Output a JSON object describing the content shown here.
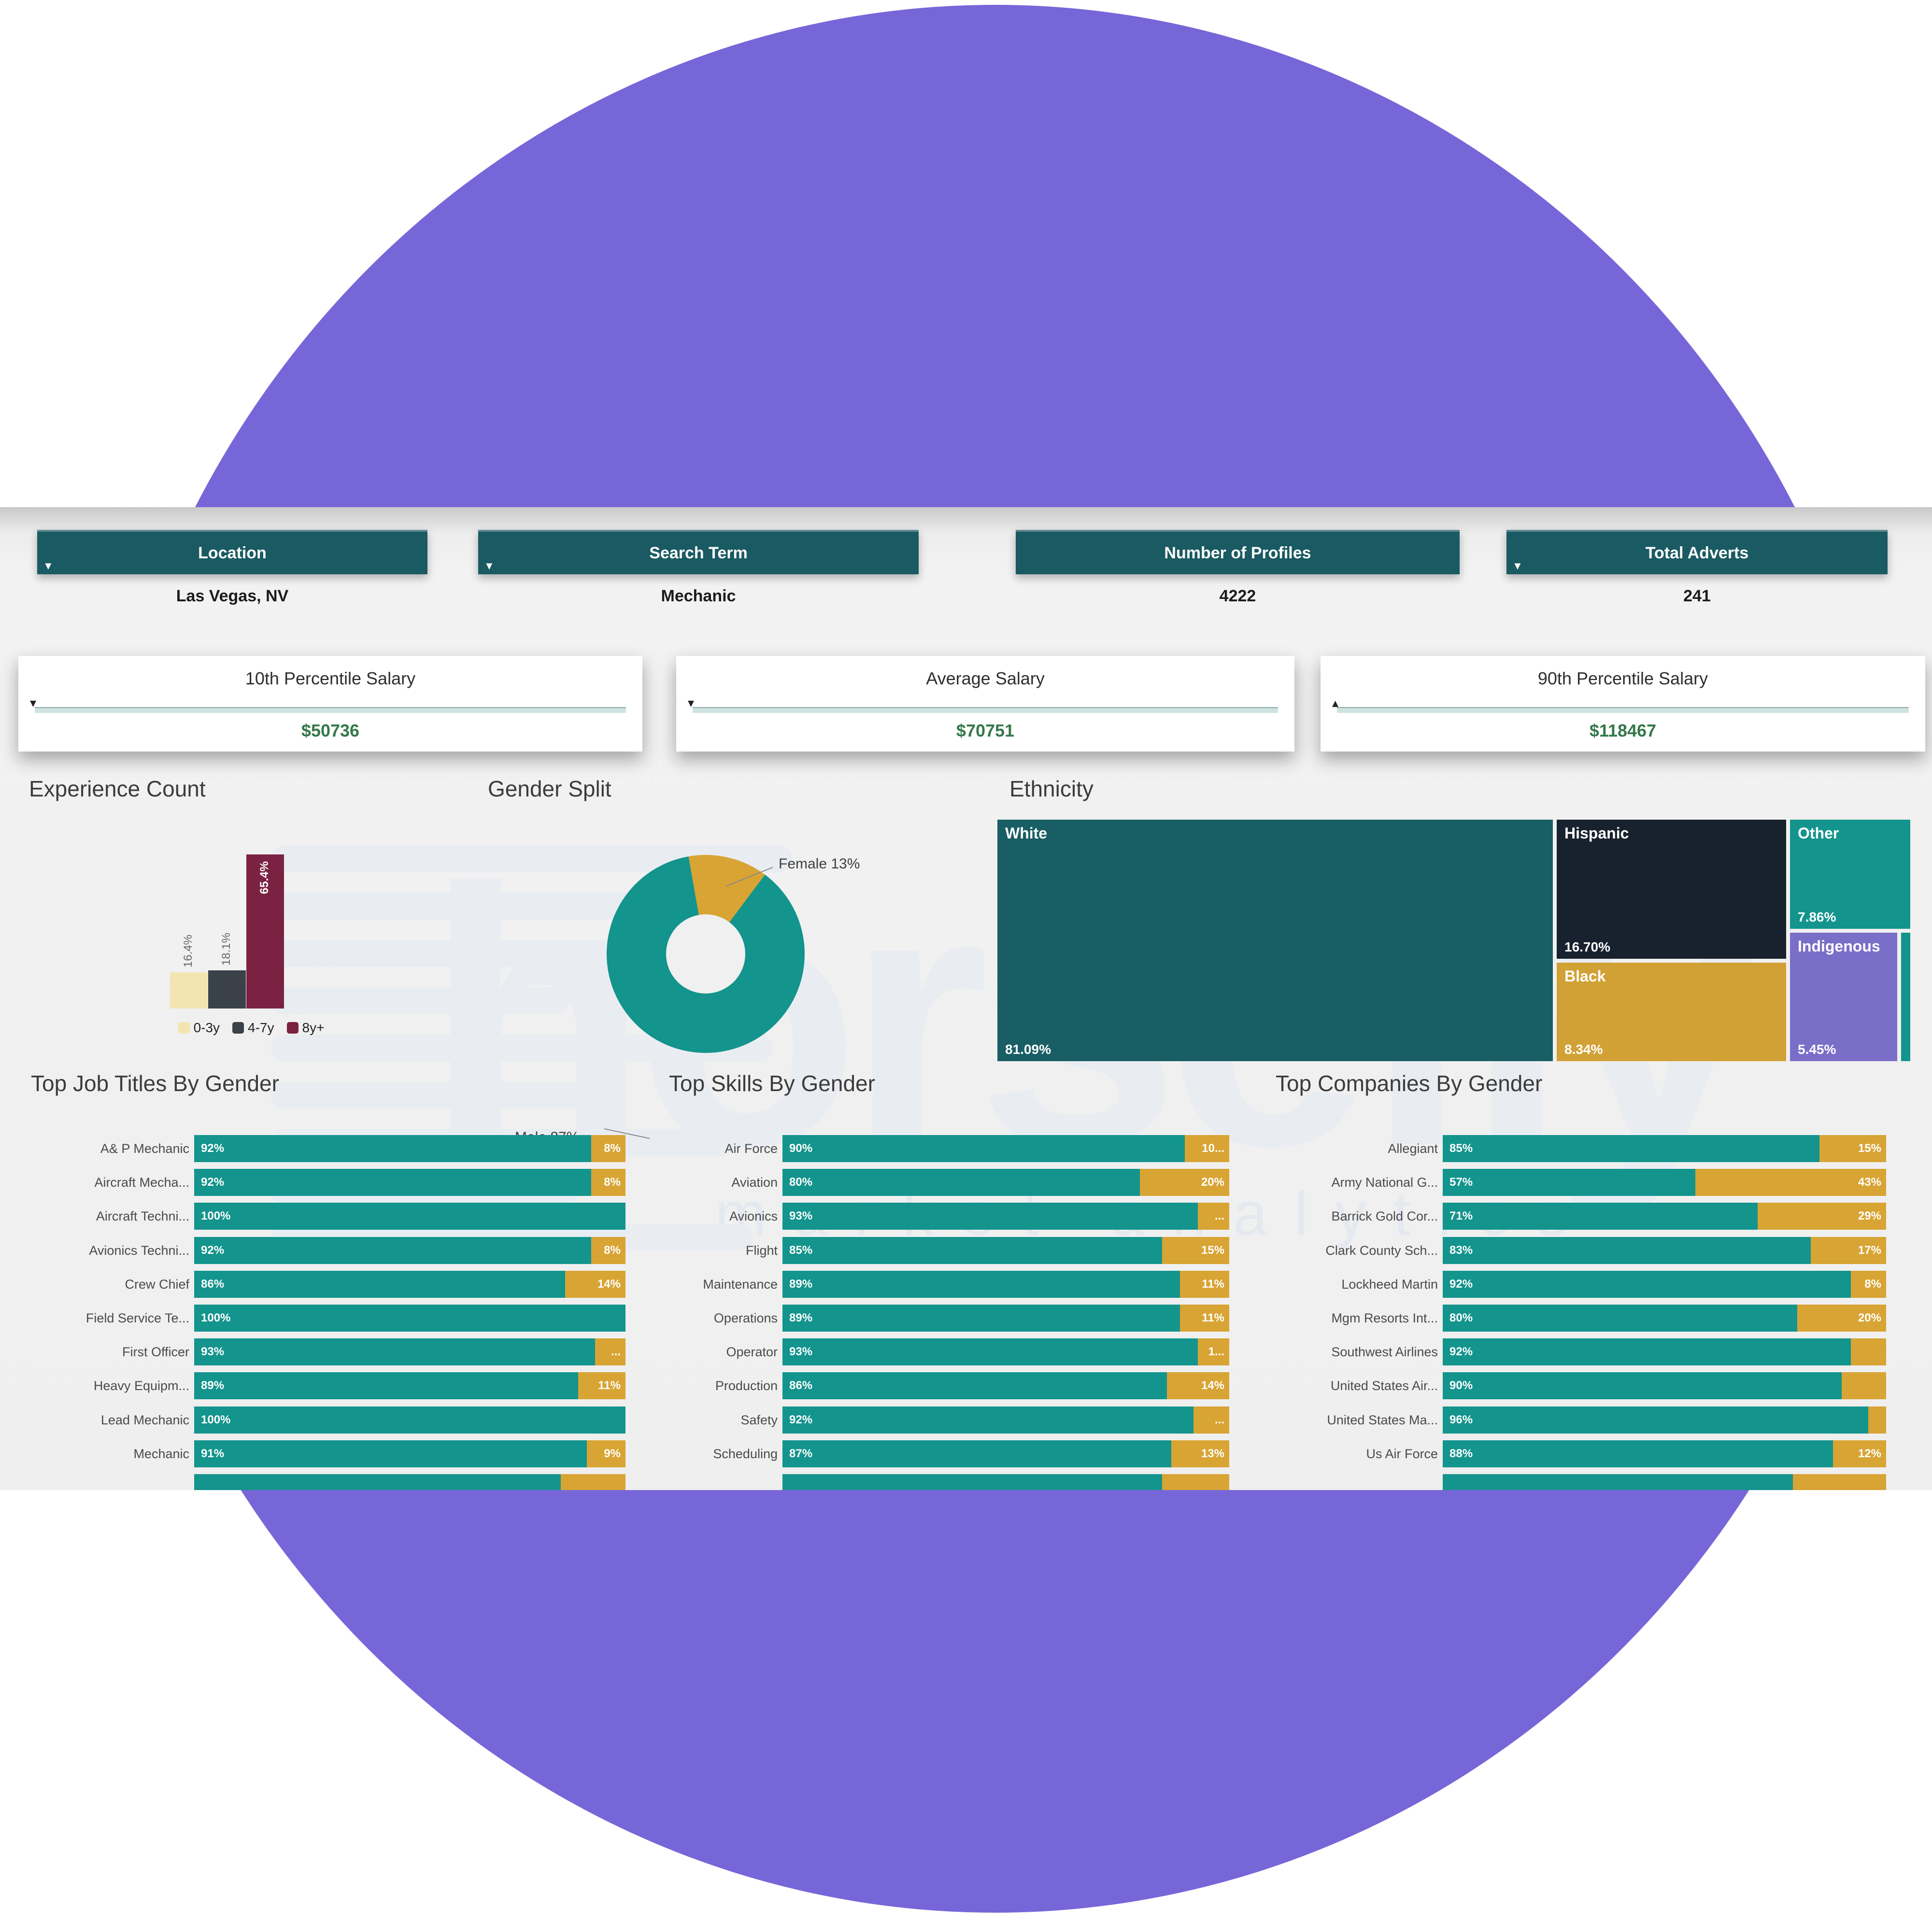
{
  "filters": {
    "location": {
      "label": "Location",
      "value": "Las Vegas, NV"
    },
    "search_term": {
      "label": "Search Term",
      "value": "Mechanic"
    },
    "profiles": {
      "label": "Number of Profiles",
      "value": "4222"
    },
    "adverts": {
      "label": "Total Adverts",
      "value": "241"
    }
  },
  "salary_cards": [
    {
      "title": "10th Percentile Salary",
      "value": "$50736",
      "caret": "▾"
    },
    {
      "title": "Average Salary",
      "value": "$70751",
      "caret": "▾"
    },
    {
      "title": "90th Percentile Salary",
      "value": "$118467",
      "caret": "▴"
    }
  ],
  "watermark": {
    "brand": "horsefly",
    "tagline": "market analytics"
  },
  "colors": {
    "purple": "#7766D8",
    "header_teal": "#1A5A62",
    "teal": "#13948D",
    "gold": "#D8A434",
    "maroon": "#7B2242",
    "cream": "#F3E5B1",
    "slate": "#3A4149",
    "salary_green": "#35784B"
  },
  "chart_data": [
    {
      "type": "bar",
      "title": "Experience Count",
      "categories": [
        "0-3y",
        "4-7y",
        "8y+"
      ],
      "values": [
        16.4,
        18.1,
        65.4
      ],
      "value_labels": [
        "16.4%",
        "18.1%",
        "65.4%"
      ],
      "colors": [
        "#F3E5B1",
        "#3A4149",
        "#7B2242"
      ],
      "ylabel": "",
      "xlabel": "",
      "legend_position": "bottom"
    },
    {
      "type": "pie",
      "title": "Gender Split",
      "labels": [
        "Male",
        "Female"
      ],
      "values": [
        87,
        13
      ],
      "colors": [
        "#13948D",
        "#D8A434"
      ],
      "donut": true,
      "annotations": [
        "Male 87%",
        "Female 13%"
      ]
    },
    {
      "type": "treemap",
      "title": "Ethnicity",
      "tiles": [
        {
          "label": "White",
          "value": 81.09,
          "pct": "81.09%",
          "color": "#185E64"
        },
        {
          "label": "Hispanic",
          "value": 16.7,
          "pct": "16.70%",
          "color": "#17222E"
        },
        {
          "label": "Black",
          "value": 8.34,
          "pct": "8.34%",
          "color": "#D2A136"
        },
        {
          "label": "Other",
          "value": 7.86,
          "pct": "7.86%",
          "color": "#13948D"
        },
        {
          "label": "Indigenous",
          "value": 5.45,
          "pct": "5.45%",
          "color": "#7A6EC8"
        },
        {
          "label": "",
          "value": null,
          "pct": "",
          "color": "#13948D"
        }
      ]
    },
    {
      "type": "bar",
      "stacked": true,
      "orientation": "horizontal",
      "title": "Top Job Titles By Gender",
      "series_names": [
        "Male",
        "Female"
      ],
      "colors": [
        "#13948D",
        "#D8A434"
      ],
      "rows": [
        {
          "label": "A& P Mechanic",
          "male": 92,
          "female": 8,
          "male_label": "92%",
          "female_label": "8%"
        },
        {
          "label": "Aircraft Mecha...",
          "male": 92,
          "female": 8,
          "male_label": "92%",
          "female_label": "8%"
        },
        {
          "label": "Aircraft Techni...",
          "male": 100,
          "female": 0,
          "male_label": "100%",
          "female_label": ""
        },
        {
          "label": "Avionics Techni...",
          "male": 92,
          "female": 8,
          "male_label": "92%",
          "female_label": "8%"
        },
        {
          "label": "Crew Chief",
          "male": 86,
          "female": 14,
          "male_label": "86%",
          "female_label": "14%"
        },
        {
          "label": "Field Service Te...",
          "male": 100,
          "female": 0,
          "male_label": "100%",
          "female_label": ""
        },
        {
          "label": "First Officer",
          "male": 93,
          "female": 7,
          "male_label": "93%",
          "female_label": "..."
        },
        {
          "label": "Heavy Equipm...",
          "male": 89,
          "female": 11,
          "male_label": "89%",
          "female_label": "11%"
        },
        {
          "label": "Lead Mechanic",
          "male": 100,
          "female": 0,
          "male_label": "100%",
          "female_label": ""
        },
        {
          "label": "Mechanic",
          "male": 91,
          "female": 9,
          "male_label": "91%",
          "female_label": "9%"
        },
        {
          "label": "",
          "male": 85,
          "female": 15,
          "male_label": "",
          "female_label": ""
        }
      ]
    },
    {
      "type": "bar",
      "stacked": true,
      "orientation": "horizontal",
      "title": "Top Skills By Gender",
      "series_names": [
        "Male",
        "Female"
      ],
      "colors": [
        "#13948D",
        "#D8A434"
      ],
      "rows": [
        {
          "label": "Air Force",
          "male": 90,
          "female": 10,
          "male_label": "90%",
          "female_label": "10..."
        },
        {
          "label": "Aviation",
          "male": 80,
          "female": 20,
          "male_label": "80%",
          "female_label": "20%"
        },
        {
          "label": "Avionics",
          "male": 93,
          "female": 7,
          "male_label": "93%",
          "female_label": "..."
        },
        {
          "label": "Flight",
          "male": 85,
          "female": 15,
          "male_label": "85%",
          "female_label": "15%"
        },
        {
          "label": "Maintenance",
          "male": 89,
          "female": 11,
          "male_label": "89%",
          "female_label": "11%"
        },
        {
          "label": "Operations",
          "male": 89,
          "female": 11,
          "male_label": "89%",
          "female_label": "11%"
        },
        {
          "label": "Operator",
          "male": 93,
          "female": 7,
          "male_label": "93%",
          "female_label": "1..."
        },
        {
          "label": "Production",
          "male": 86,
          "female": 14,
          "male_label": "86%",
          "female_label": "14%"
        },
        {
          "label": "Safety",
          "male": 92,
          "female": 8,
          "male_label": "92%",
          "female_label": "..."
        },
        {
          "label": "Scheduling",
          "male": 87,
          "female": 13,
          "male_label": "87%",
          "female_label": "13%"
        },
        {
          "label": "",
          "male": 85,
          "female": 15,
          "male_label": "",
          "female_label": ""
        }
      ]
    },
    {
      "type": "bar",
      "stacked": true,
      "orientation": "horizontal",
      "title": "Top Companies By Gender",
      "series_names": [
        "Male",
        "Female"
      ],
      "colors": [
        "#13948D",
        "#D8A434"
      ],
      "rows": [
        {
          "label": "Allegiant",
          "male": 85,
          "female": 15,
          "male_label": "85%",
          "female_label": "15%"
        },
        {
          "label": "Army National G...",
          "male": 57,
          "female": 43,
          "male_label": "57%",
          "female_label": "43%"
        },
        {
          "label": "Barrick Gold Cor...",
          "male": 71,
          "female": 29,
          "male_label": "71%",
          "female_label": "29%"
        },
        {
          "label": "Clark County Sch...",
          "male": 83,
          "female": 17,
          "male_label": "83%",
          "female_label": "17%"
        },
        {
          "label": "Lockheed Martin",
          "male": 92,
          "female": 8,
          "male_label": "92%",
          "female_label": "8%"
        },
        {
          "label": "Mgm Resorts Int...",
          "male": 80,
          "female": 20,
          "male_label": "80%",
          "female_label": "20%"
        },
        {
          "label": "Southwest Airlines",
          "male": 92,
          "female": 8,
          "male_label": "92%",
          "female_label": ""
        },
        {
          "label": "United States Air...",
          "male": 90,
          "female": 10,
          "male_label": "90%",
          "female_label": ""
        },
        {
          "label": "United States Ma...",
          "male": 96,
          "female": 4,
          "male_label": "96%",
          "female_label": ""
        },
        {
          "label": "Us Air Force",
          "male": 88,
          "female": 12,
          "male_label": "88%",
          "female_label": "12%"
        },
        {
          "label": "",
          "male": 79,
          "female": 21,
          "male_label": "",
          "female_label": ""
        }
      ]
    }
  ]
}
